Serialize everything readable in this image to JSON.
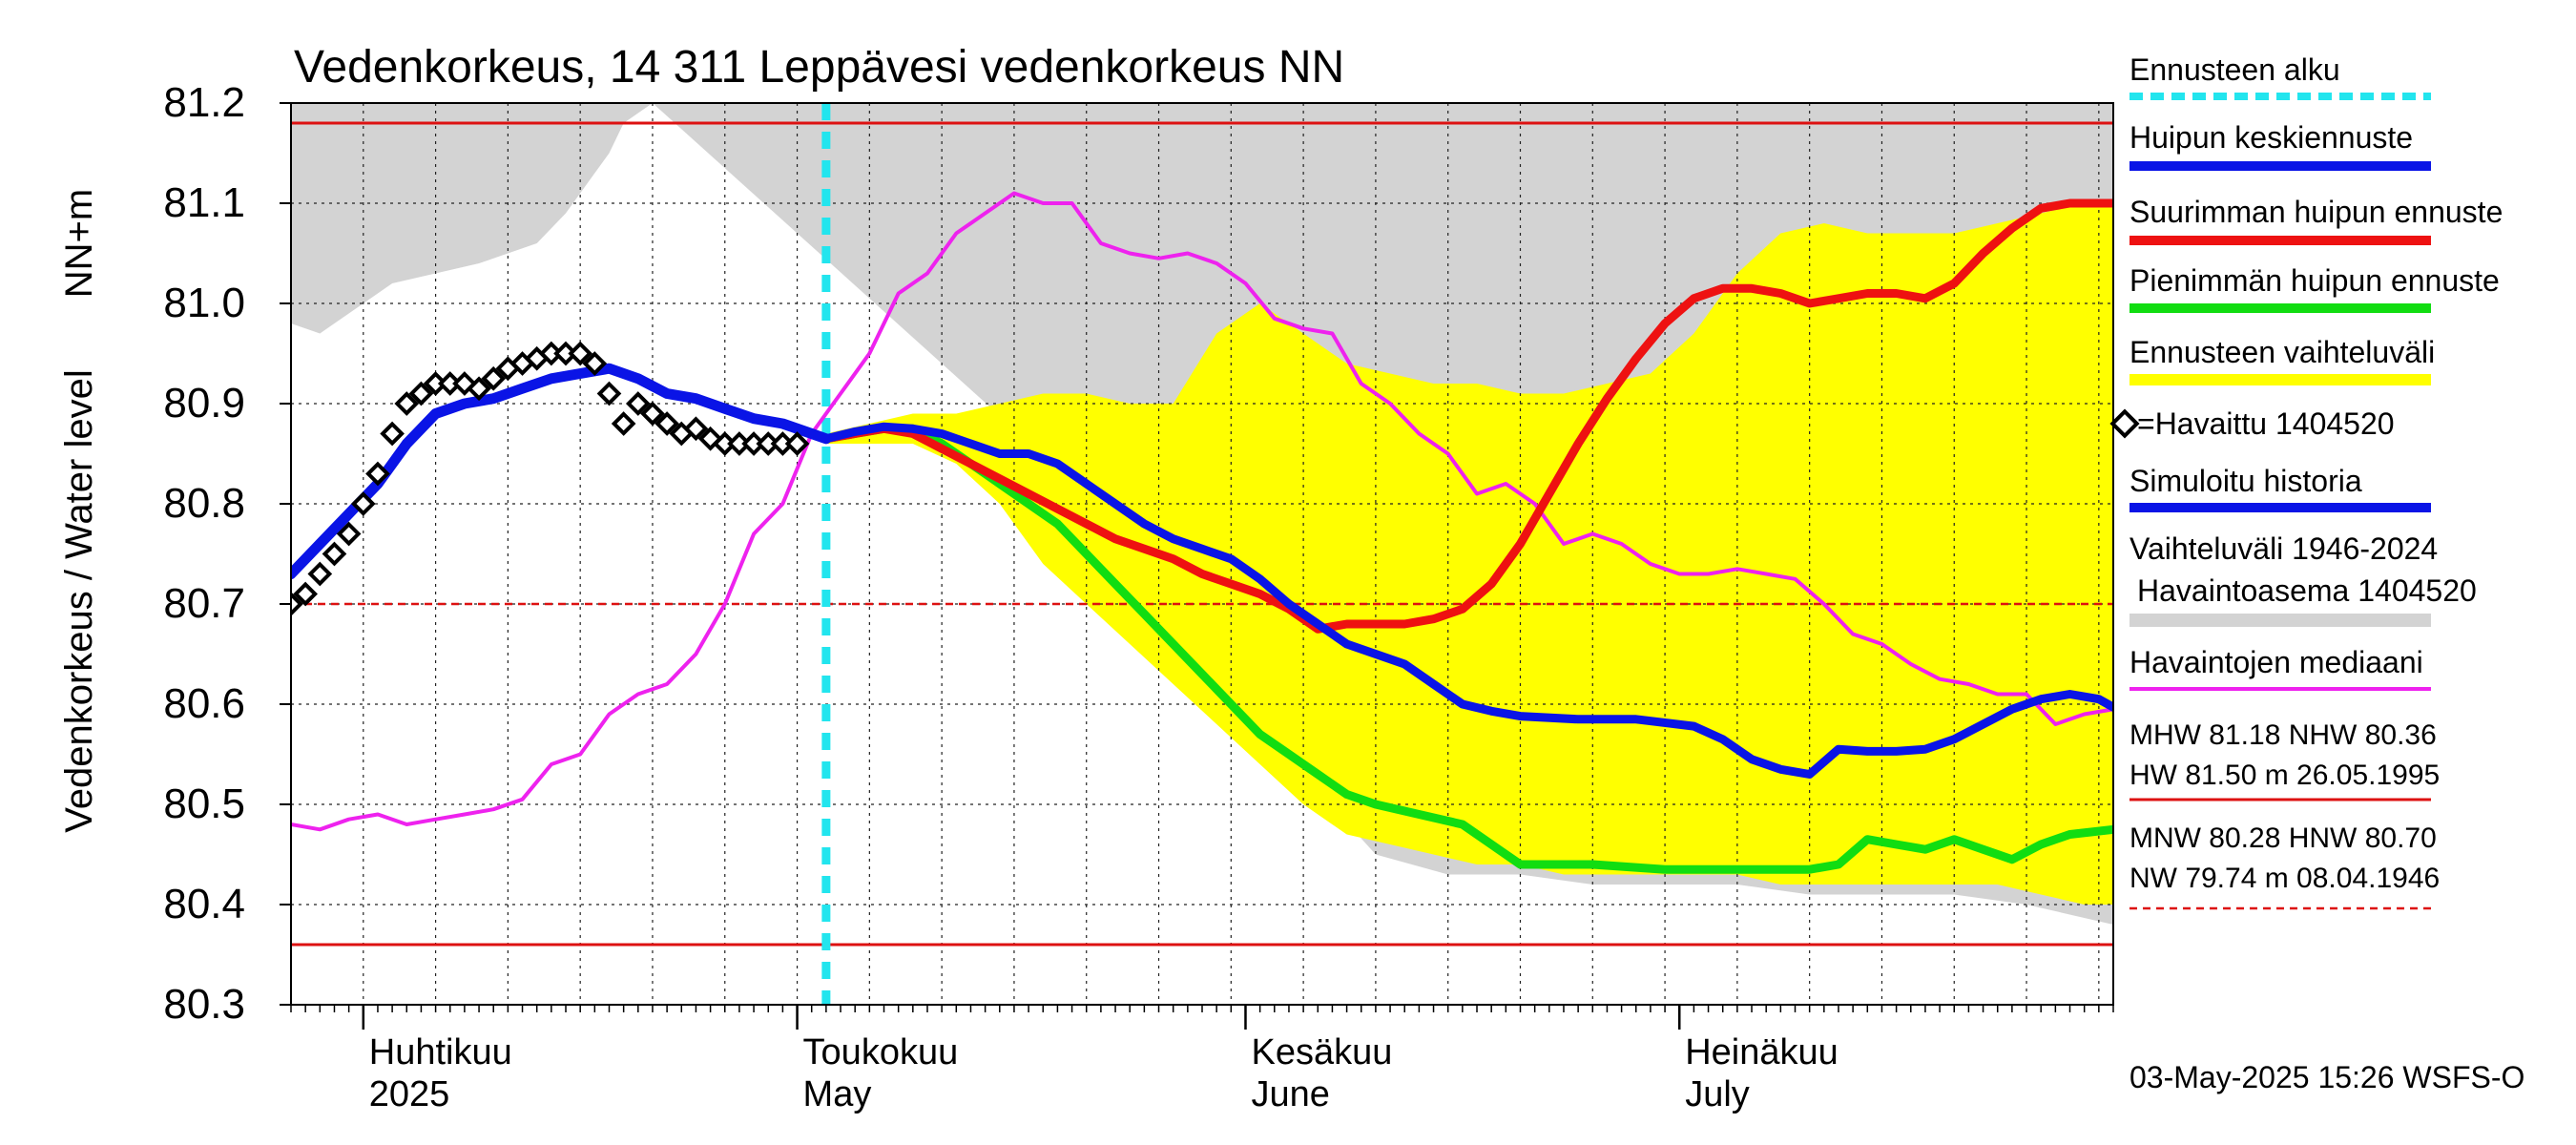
{
  "chart_data": {
    "type": "line",
    "title": "Vedenkorkeus, 14 311 Leppävesi vedenkorkeus NN",
    "ylabel": "Vedenkorkeus / Water level",
    "yunit": "NN+m",
    "ylim": [
      80.3,
      81.2
    ],
    "xlim": [
      "2025-03-27",
      "2025-07-31"
    ],
    "y_ticks": [
      "80.3",
      "80.4",
      "80.5",
      "80.6",
      "80.7",
      "80.8",
      "80.9",
      "81.0",
      "81.1",
      "81.2"
    ],
    "month_labels": [
      {
        "date": "2025-04-01",
        "fi": "Huhtikuu",
        "en": "2025"
      },
      {
        "date": "2025-05-01",
        "fi": "Toukokuu",
        "en": "May"
      },
      {
        "date": "2025-06-01",
        "fi": "Kesäkuu",
        "en": "June"
      },
      {
        "date": "2025-07-01",
        "fi": "Heinäkuu",
        "en": "July"
      }
    ],
    "forecast_start": "2025-05-03",
    "reference_lines": {
      "MHW": 81.18,
      "NHW": 80.36,
      "HNW": 80.7
    },
    "colors": {
      "forecast_start": "#22e5ee",
      "mean_peak": "#0a14e6",
      "max_peak": "#ee1111",
      "min_peak": "#11dd11",
      "forecast_range": "#ffff00",
      "observed": "#000000",
      "simulated": "#0a14e6",
      "hist_range": "#d3d3d3",
      "median": "#ee22ee",
      "ref_line": "#dd1111"
    },
    "hist_range": {
      "x": [
        "2025-03-27",
        "2025-03-29",
        "2025-04-01",
        "2025-04-03",
        "2025-04-06",
        "2025-04-09",
        "2025-04-11",
        "2025-04-13",
        "2025-04-15",
        "2025-04-17",
        "2025-04-18",
        "2025-04-19",
        "2025-04-21",
        "2025-05-31",
        "2025-06-05",
        "2025-06-10",
        "2025-06-15",
        "2025-06-20",
        "2025-06-25",
        "2025-06-30",
        "2025-07-05",
        "2025-07-10",
        "2025-07-15",
        "2025-07-20",
        "2025-07-25",
        "2025-07-31"
      ],
      "upper": [
        81.2,
        81.2,
        81.2,
        81.2,
        81.2,
        81.2,
        81.2,
        81.2,
        81.2,
        81.2,
        81.2,
        81.2,
        81.2,
        81.2,
        81.2,
        81.2,
        81.2,
        81.2,
        81.2,
        81.2,
        81.2,
        81.2,
        81.2,
        81.2,
        81.2,
        81.2
      ],
      "lower": [
        80.98,
        80.97,
        81.0,
        81.02,
        81.03,
        81.04,
        81.05,
        81.06,
        81.09,
        81.13,
        81.15,
        81.18,
        81.2,
        80.68,
        80.53,
        80.45,
        80.43,
        80.43,
        80.42,
        80.42,
        80.42,
        80.41,
        80.41,
        80.41,
        80.4,
        80.38
      ]
    },
    "forecast_range": {
      "x": [
        "2025-05-03",
        "2025-05-06",
        "2025-05-09",
        "2025-05-12",
        "2025-05-15",
        "2025-05-18",
        "2025-05-21",
        "2025-05-24",
        "2025-05-27",
        "2025-05-30",
        "2025-06-02",
        "2025-06-05",
        "2025-06-08",
        "2025-06-11",
        "2025-06-14",
        "2025-06-17",
        "2025-06-20",
        "2025-06-23",
        "2025-06-26",
        "2025-06-29",
        "2025-07-02",
        "2025-07-05",
        "2025-07-08",
        "2025-07-11",
        "2025-07-14",
        "2025-07-17",
        "2025-07-20",
        "2025-07-23",
        "2025-07-26",
        "2025-07-29",
        "2025-07-31"
      ],
      "upper": [
        80.87,
        80.88,
        80.89,
        80.89,
        80.9,
        80.91,
        80.91,
        80.9,
        80.9,
        80.97,
        81.0,
        80.97,
        80.94,
        80.93,
        80.92,
        80.92,
        80.91,
        80.91,
        80.92,
        80.93,
        80.97,
        81.03,
        81.07,
        81.08,
        81.07,
        81.07,
        81.07,
        81.08,
        81.09,
        81.1,
        81.1
      ],
      "lower": [
        80.86,
        80.86,
        80.86,
        80.84,
        80.8,
        80.74,
        80.7,
        80.66,
        80.62,
        80.58,
        80.54,
        80.5,
        80.47,
        80.46,
        80.45,
        80.44,
        80.44,
        80.43,
        80.43,
        80.43,
        80.43,
        80.43,
        80.42,
        80.42,
        80.42,
        80.42,
        80.42,
        80.42,
        80.41,
        80.4,
        80.4
      ]
    },
    "series": [
      {
        "name": "Pienimmän huipun ennuste",
        "key": "min_peak",
        "x": [
          "2025-05-03",
          "2025-05-05",
          "2025-05-07",
          "2025-05-09",
          "2025-05-11",
          "2025-05-13",
          "2025-05-15",
          "2025-05-17",
          "2025-05-19",
          "2025-05-21",
          "2025-05-23",
          "2025-05-25",
          "2025-05-27",
          "2025-05-29",
          "2025-05-31",
          "2025-06-02",
          "2025-06-04",
          "2025-06-06",
          "2025-06-08",
          "2025-06-10",
          "2025-06-13",
          "2025-06-16",
          "2025-06-20",
          "2025-06-25",
          "2025-06-30",
          "2025-07-05",
          "2025-07-10",
          "2025-07-12",
          "2025-07-14",
          "2025-07-16",
          "2025-07-18",
          "2025-07-20",
          "2025-07-22",
          "2025-07-24",
          "2025-07-26",
          "2025-07-28",
          "2025-07-31"
        ],
        "y": [
          80.865,
          80.87,
          80.875,
          80.875,
          80.86,
          80.84,
          80.82,
          80.8,
          80.78,
          80.75,
          80.72,
          80.69,
          80.66,
          80.63,
          80.6,
          80.57,
          80.55,
          80.53,
          80.51,
          80.5,
          80.49,
          80.48,
          80.44,
          80.44,
          80.435,
          80.435,
          80.435,
          80.44,
          80.465,
          80.46,
          80.455,
          80.465,
          80.455,
          80.445,
          80.46,
          80.47,
          80.475
        ]
      },
      {
        "name": "Suurimman huipun ennuste",
        "key": "max_peak",
        "x": [
          "2025-05-03",
          "2025-05-05",
          "2025-05-07",
          "2025-05-09",
          "2025-05-11",
          "2025-05-13",
          "2025-05-15",
          "2025-05-17",
          "2025-05-19",
          "2025-05-21",
          "2025-05-23",
          "2025-05-25",
          "2025-05-27",
          "2025-05-29",
          "2025-05-31",
          "2025-06-02",
          "2025-06-04",
          "2025-06-06",
          "2025-06-08",
          "2025-06-10",
          "2025-06-12",
          "2025-06-14",
          "2025-06-16",
          "2025-06-18",
          "2025-06-20",
          "2025-06-22",
          "2025-06-24",
          "2025-06-26",
          "2025-06-28",
          "2025-06-30",
          "2025-07-02",
          "2025-07-04",
          "2025-07-06",
          "2025-07-08",
          "2025-07-10",
          "2025-07-12",
          "2025-07-14",
          "2025-07-16",
          "2025-07-18",
          "2025-07-20",
          "2025-07-22",
          "2025-07-24",
          "2025-07-26",
          "2025-07-28",
          "2025-07-31"
        ],
        "y": [
          80.865,
          80.87,
          80.875,
          80.87,
          80.855,
          80.84,
          80.825,
          80.81,
          80.795,
          80.78,
          80.765,
          80.755,
          80.745,
          80.73,
          80.72,
          80.71,
          80.695,
          80.675,
          80.68,
          80.68,
          80.68,
          80.685,
          80.695,
          80.72,
          80.76,
          80.81,
          80.86,
          80.905,
          80.945,
          80.98,
          81.005,
          81.015,
          81.015,
          81.01,
          81.0,
          81.005,
          81.01,
          81.01,
          81.005,
          81.02,
          81.05,
          81.075,
          81.095,
          81.1,
          81.1
        ]
      },
      {
        "name": "Huipun keskiennuste",
        "key": "mean_peak",
        "x": [
          "2025-05-03",
          "2025-05-05",
          "2025-05-07",
          "2025-05-09",
          "2025-05-11",
          "2025-05-13",
          "2025-05-15",
          "2025-05-17",
          "2025-05-19",
          "2025-05-21",
          "2025-05-23",
          "2025-05-25",
          "2025-05-27",
          "2025-05-29",
          "2025-05-31",
          "2025-06-02",
          "2025-06-04",
          "2025-06-06",
          "2025-06-08",
          "2025-06-10",
          "2025-06-12",
          "2025-06-14",
          "2025-06-16",
          "2025-06-18",
          "2025-06-20",
          "2025-06-24",
          "2025-06-28",
          "2025-07-02",
          "2025-07-04",
          "2025-07-06",
          "2025-07-08",
          "2025-07-10",
          "2025-07-12",
          "2025-07-14",
          "2025-07-16",
          "2025-07-18",
          "2025-07-20",
          "2025-07-22",
          "2025-07-24",
          "2025-07-26",
          "2025-07-28",
          "2025-07-30",
          "2025-07-31"
        ],
        "y": [
          80.865,
          80.872,
          80.877,
          80.875,
          80.87,
          80.86,
          80.85,
          80.85,
          80.84,
          80.82,
          80.8,
          80.78,
          80.765,
          80.755,
          80.745,
          80.725,
          80.7,
          80.68,
          80.66,
          80.65,
          80.64,
          80.62,
          80.6,
          80.593,
          80.588,
          80.585,
          80.585,
          80.578,
          80.565,
          80.545,
          80.535,
          80.53,
          80.555,
          80.553,
          80.553,
          80.555,
          80.565,
          80.58,
          80.595,
          80.605,
          80.61,
          80.605,
          80.597
        ]
      },
      {
        "name": "Simuloitu historia",
        "key": "simulated",
        "x": [
          "2025-03-27",
          "2025-03-29",
          "2025-03-31",
          "2025-04-02",
          "2025-04-04",
          "2025-04-06",
          "2025-04-08",
          "2025-04-10",
          "2025-04-12",
          "2025-04-14",
          "2025-04-16",
          "2025-04-18",
          "2025-04-20",
          "2025-04-22",
          "2025-04-24",
          "2025-04-26",
          "2025-04-28",
          "2025-04-30",
          "2025-05-02",
          "2025-05-03"
        ],
        "y": [
          80.73,
          80.76,
          80.79,
          80.82,
          80.86,
          80.89,
          80.9,
          80.905,
          80.915,
          80.925,
          80.93,
          80.935,
          80.925,
          80.91,
          80.905,
          80.895,
          80.885,
          80.88,
          80.87,
          80.865
        ]
      },
      {
        "name": "Havaintojen mediaani",
        "key": "median",
        "x": [
          "2025-03-27",
          "2025-03-29",
          "2025-03-31",
          "2025-04-02",
          "2025-04-04",
          "2025-04-06",
          "2025-04-08",
          "2025-04-10",
          "2025-04-12",
          "2025-04-14",
          "2025-04-16",
          "2025-04-18",
          "2025-04-20",
          "2025-04-22",
          "2025-04-24",
          "2025-04-26",
          "2025-04-28",
          "2025-04-30",
          "2025-05-02",
          "2025-05-04",
          "2025-05-06",
          "2025-05-08",
          "2025-05-10",
          "2025-05-12",
          "2025-05-14",
          "2025-05-16",
          "2025-05-18",
          "2025-05-20",
          "2025-05-22",
          "2025-05-24",
          "2025-05-26",
          "2025-05-28",
          "2025-05-30",
          "2025-06-01",
          "2025-06-03",
          "2025-06-05",
          "2025-06-07",
          "2025-06-09",
          "2025-06-11",
          "2025-06-13",
          "2025-06-15",
          "2025-06-17",
          "2025-06-19",
          "2025-06-21",
          "2025-06-23",
          "2025-06-25",
          "2025-06-27",
          "2025-06-29",
          "2025-07-01",
          "2025-07-03",
          "2025-07-05",
          "2025-07-07",
          "2025-07-09",
          "2025-07-11",
          "2025-07-13",
          "2025-07-15",
          "2025-07-17",
          "2025-07-19",
          "2025-07-21",
          "2025-07-23",
          "2025-07-25",
          "2025-07-27",
          "2025-07-29",
          "2025-07-31"
        ],
        "y": [
          80.48,
          80.475,
          80.485,
          80.49,
          80.48,
          80.485,
          80.49,
          80.495,
          80.505,
          80.54,
          80.55,
          80.59,
          80.61,
          80.62,
          80.65,
          80.7,
          80.77,
          80.8,
          80.87,
          80.91,
          80.95,
          81.01,
          81.03,
          81.07,
          81.09,
          81.11,
          81.1,
          81.1,
          81.06,
          81.05,
          81.045,
          81.05,
          81.04,
          81.02,
          80.985,
          80.975,
          80.97,
          80.92,
          80.9,
          80.87,
          80.85,
          80.81,
          80.82,
          80.8,
          80.76,
          80.77,
          80.76,
          80.74,
          80.73,
          80.73,
          80.735,
          80.73,
          80.725,
          80.7,
          80.67,
          80.66,
          80.64,
          80.625,
          80.62,
          80.61,
          80.61,
          80.58,
          80.59,
          80.595
        ]
      }
    ],
    "observed": {
      "name": "=Havaittu 1404520",
      "x": [
        "2025-03-27",
        "2025-03-28",
        "2025-03-29",
        "2025-03-30",
        "2025-03-31",
        "2025-04-01",
        "2025-04-02",
        "2025-04-03",
        "2025-04-04",
        "2025-04-05",
        "2025-04-06",
        "2025-04-07",
        "2025-04-08",
        "2025-04-09",
        "2025-04-10",
        "2025-04-11",
        "2025-04-12",
        "2025-04-13",
        "2025-04-14",
        "2025-04-15",
        "2025-04-16",
        "2025-04-17",
        "2025-04-18",
        "2025-04-19",
        "2025-04-20",
        "2025-04-21",
        "2025-04-22",
        "2025-04-23",
        "2025-04-24",
        "2025-04-25",
        "2025-04-26",
        "2025-04-27",
        "2025-04-28",
        "2025-04-29",
        "2025-04-30",
        "2025-05-01"
      ],
      "y": [
        80.7,
        80.71,
        80.73,
        80.75,
        80.77,
        80.8,
        80.83,
        80.87,
        80.9,
        80.91,
        80.92,
        80.92,
        80.92,
        80.915,
        80.925,
        80.935,
        80.94,
        80.945,
        80.95,
        80.95,
        80.95,
        80.94,
        80.91,
        80.88,
        80.9,
        80.89,
        80.88,
        80.87,
        80.875,
        80.865,
        80.86,
        80.86,
        80.86,
        80.86,
        80.86,
        80.86
      ]
    },
    "legend": {
      "forecast_start": "Ennusteen alku",
      "mean_peak": "Huipun keskiennuste",
      "max_peak": "Suurimman huipun ennuste",
      "min_peak": "Pienimmän huipun ennuste",
      "forecast_range": "Ennusteen vaihteluväli",
      "observed": "=Havaittu 1404520",
      "simulated": "Simuloitu historia",
      "hist_range_1": "Vaihteluväli 1946-2024",
      "hist_range_2": "Havaintoasema 1404520",
      "median": "Havaintojen mediaani"
    },
    "stats": {
      "line1": "MHW  81.18 NHW  80.36",
      "line2": "HW  81.50 m 26.05.1995",
      "line3": "MNW  80.28 HNW  80.70",
      "line4": "NW  79.74 m 08.04.1946"
    },
    "footer": "03-May-2025 15:26 WSFS-O"
  }
}
